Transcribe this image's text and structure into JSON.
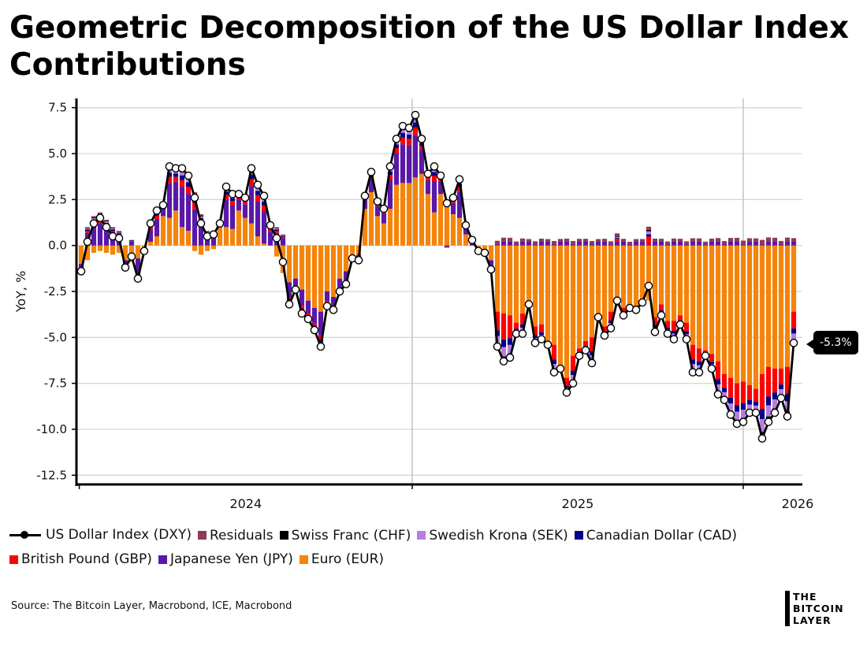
{
  "title": "Geometric Decomposition of the US Dollar Index Contributions",
  "source": "Source: The Bitcoin Layer, Macrobond, ICE, Macrobond",
  "logo": [
    "THE",
    "BITCOIN",
    "LAYER"
  ],
  "callout": "-5.3%",
  "legend": [
    {
      "key": "dxy",
      "label": "US Dollar Index (DXY)",
      "type": "line"
    },
    {
      "key": "residuals",
      "label": "Residuals",
      "color": "#8e3b55"
    },
    {
      "key": "chf",
      "label": "Swiss Franc (CHF)",
      "color": "#000000"
    },
    {
      "key": "sek",
      "label": "Swedish Krona (SEK)",
      "color": "#b77ee0"
    },
    {
      "key": "cad",
      "label": "Canadian Dollar (CAD)",
      "color": "#00008b"
    },
    {
      "key": "gbp",
      "label": "British Pound (GBP)",
      "color": "#ff0000"
    },
    {
      "key": "jpy",
      "label": "Japanese Yen (JPY)",
      "color": "#5a18a8"
    },
    {
      "key": "eur",
      "label": "Euro (EUR)",
      "color": "#f5840a"
    }
  ],
  "chart_data": {
    "type": "bar",
    "stacked": true,
    "frequency": "weekly",
    "title": "Geometric Decomposition of the US Dollar Index Contributions",
    "xlabel": "",
    "ylabel": "YoY, %",
    "ylim": [
      -13,
      8
    ],
    "yticks": [
      7.5,
      5.0,
      2.5,
      0.0,
      -2.5,
      -5.0,
      -7.5,
      -10.0,
      -12.5
    ],
    "ytick_labels": [
      "7.5",
      "5.0",
      "2.5",
      "0.0",
      "-2.5",
      "-5.0",
      "-7.5",
      "-10.0",
      "-12.5"
    ],
    "xtick_labels": [
      "2024",
      "2025",
      "2026"
    ],
    "grid": true,
    "legend_position": "bottom",
    "dxy": [
      -1.4,
      0.2,
      1.2,
      1.5,
      1.0,
      0.5,
      0.4,
      -1.2,
      -0.6,
      -1.8,
      -0.3,
      1.2,
      1.9,
      2.2,
      4.3,
      4.2,
      4.2,
      3.8,
      2.6,
      1.2,
      0.5,
      0.6,
      1.2,
      3.2,
      2.8,
      2.8,
      2.6,
      4.2,
      3.3,
      2.7,
      1.1,
      0.4,
      -0.9,
      -3.2,
      -2.4,
      -3.7,
      -4.0,
      -4.6,
      -5.5,
      -3.3,
      -3.5,
      -2.5,
      -2.1,
      -0.7,
      -0.8,
      2.7,
      4.0,
      2.4,
      2.0,
      4.3,
      5.8,
      6.5,
      6.4,
      7.1,
      5.8,
      3.9,
      4.3,
      3.8,
      2.3,
      2.6,
      3.6,
      1.1,
      0.3,
      -0.3,
      -0.4,
      -1.3,
      -5.5,
      -6.3,
      -6.1,
      -4.8,
      -4.8,
      -3.2,
      -5.3,
      -5.1,
      -5.4,
      -6.9,
      -6.7,
      -8.0,
      -7.5,
      -6.0,
      -5.7,
      -6.4,
      -3.9,
      -4.9,
      -4.5,
      -3.0,
      -3.8,
      -3.4,
      -3.5,
      -3.1,
      -2.2,
      -4.7,
      -3.8,
      -4.8,
      -5.1,
      -4.3,
      -5.1,
      -6.9,
      -6.9,
      -6.0,
      -6.7,
      -8.1,
      -8.4,
      -9.2,
      -9.7,
      -9.6,
      -9.1,
      -9.1,
      -10.5,
      -9.6,
      -9.1,
      -8.3,
      -9.3,
      -5.3
    ],
    "eur": [
      -1.0,
      -0.8,
      -0.4,
      -0.3,
      -0.4,
      -0.5,
      -0.4,
      -0.8,
      -0.9,
      -0.7,
      -0.3,
      0.2,
      0.5,
      1.6,
      1.5,
      1.9,
      1.0,
      0.8,
      -0.3,
      -0.5,
      -0.3,
      -0.2,
      1.2,
      1.0,
      0.9,
      1.9,
      1.5,
      1.2,
      0.5,
      0.1,
      0.0,
      -0.6,
      -1.5,
      -2.0,
      -1.8,
      -2.4,
      -3.0,
      -3.4,
      -3.6,
      -2.5,
      -2.8,
      -1.8,
      -1.4,
      -0.6,
      -0.5,
      2.0,
      2.9,
      1.6,
      1.2,
      2.0,
      3.3,
      3.4,
      3.4,
      3.7,
      3.9,
      2.8,
      1.8,
      2.8,
      2.4,
      1.7,
      1.5,
      0.6,
      0.0,
      -0.2,
      -0.2,
      -0.8,
      -3.6,
      -3.7,
      -3.8,
      -4.2,
      -3.7,
      -3.2,
      -4.4,
      -4.3,
      -5.4,
      -5.4,
      -6.5,
      -7.2,
      -6.0,
      -5.6,
      -5.2,
      -5.0,
      -3.9,
      -4.4,
      -3.6,
      -3.3,
      -3.4,
      -3.3,
      -3.5,
      -3.0,
      -3.0,
      -3.9,
      -3.2,
      -4.1,
      -4.1,
      -3.8,
      -4.2,
      -5.4,
      -5.6,
      -5.7,
      -5.9,
      -6.3,
      -7.0,
      -7.2,
      -7.5,
      -7.4,
      -7.6,
      -7.8,
      -7.0,
      -6.6,
      -6.7,
      -6.7,
      -6.6,
      -3.6
    ],
    "remainder_shares_2024": {
      "jpy": 0.68,
      "gbp": 0.12,
      "cad": 0.08,
      "sek": 0.05,
      "chf": 0.03,
      "residuals": 0.04
    },
    "remainder_shares_2025_2026": {
      "jpy": 0.18,
      "gbp": 0.32,
      "cad": 0.16,
      "sek": 0.2,
      "chf": 0.1,
      "residuals": 0.04
    },
    "regime_change_index": 66
  }
}
